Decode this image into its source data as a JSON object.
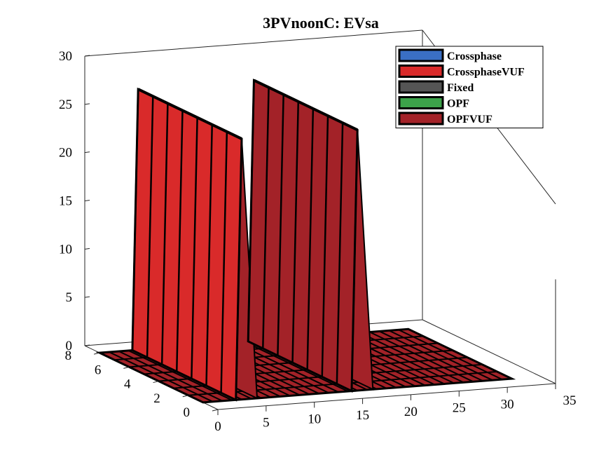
{
  "chart_data": {
    "type": "area",
    "title": "3PVnoonC: EVsa",
    "xlabel": "",
    "ylabel": "",
    "zlabel": "",
    "x_ticks": [
      "0",
      "5",
      "10",
      "15",
      "20",
      "25",
      "30",
      "35"
    ],
    "y_ticks": [
      "0",
      "2",
      "4",
      "6",
      "8"
    ],
    "z_ticks": [
      "0",
      "5",
      "10",
      "15",
      "20",
      "25",
      "30"
    ],
    "xlim": [
      0,
      35
    ],
    "ylim": [
      0,
      9
    ],
    "zlim": [
      0,
      30
    ],
    "grid": false,
    "legend_position": "top-right",
    "series": [
      {
        "name": "Crossphase",
        "color": "#3a6fc4",
        "rows": []
      },
      {
        "name": "CrossphaseVUF",
        "color": "#d92a2a",
        "rows": []
      },
      {
        "name": "Fixed",
        "color": "#555555",
        "rows": []
      },
      {
        "name": "OPF",
        "color": "#3ca24a",
        "rows": []
      },
      {
        "name": "OPFVUF",
        "color": "#a32228",
        "rows": []
      }
    ],
    "ridges": [
      {
        "x_start": 4,
        "x_end": 5,
        "y_start": 1,
        "y_end": 8,
        "peak": 27
      },
      {
        "x_start": 16,
        "x_end": 17,
        "y_start": 1,
        "y_end": 8,
        "peak": 27
      }
    ]
  }
}
